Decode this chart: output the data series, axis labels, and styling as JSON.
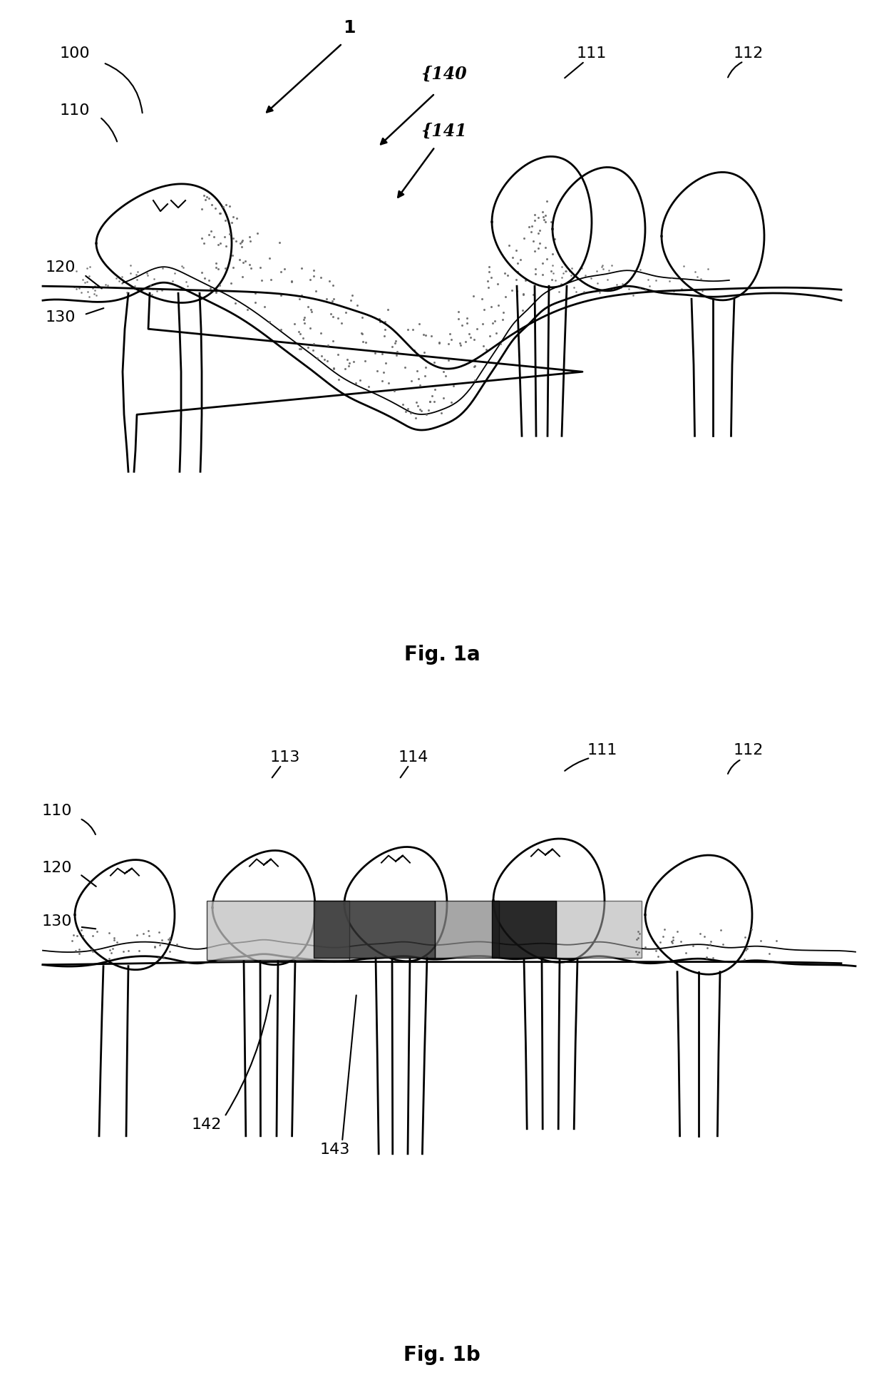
{
  "fig_title_a": "Fig. 1a",
  "fig_title_b": "Fig. 1b",
  "title_fontsize": 20,
  "label_fontsize": 16,
  "background_color": "#ffffff",
  "line_color": "#000000",
  "figsize": [
    12.4,
    19.63
  ],
  "dpi": 100
}
